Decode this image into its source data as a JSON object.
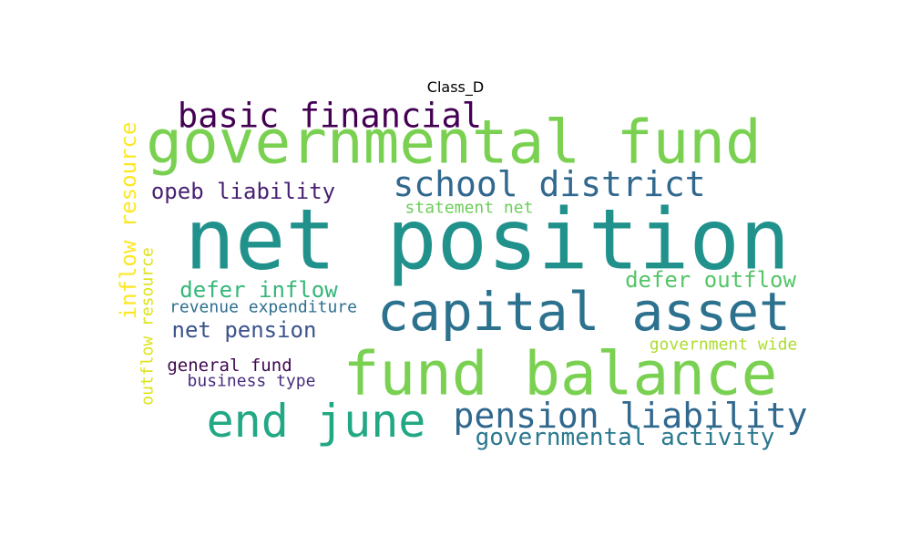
{
  "chart_data": {
    "type": "wordcloud",
    "title": "Class_D",
    "words": [
      {
        "text": "net position",
        "weight": 100,
        "color": "#21918c"
      },
      {
        "text": "governmental fund",
        "weight": 73,
        "color": "#7ad151"
      },
      {
        "text": "fund balance",
        "weight": 73,
        "color": "#7ad151"
      },
      {
        "text": "capital asset",
        "weight": 64,
        "color": "#2c728e"
      },
      {
        "text": "end june",
        "weight": 55,
        "color": "#22a884"
      },
      {
        "text": "pension liability",
        "weight": 42,
        "color": "#31688e"
      },
      {
        "text": "school district",
        "weight": 42,
        "color": "#31688e"
      },
      {
        "text": "basic financial",
        "weight": 41,
        "color": "#440154"
      },
      {
        "text": "governmental activity",
        "weight": 29,
        "color": "#2a788e"
      },
      {
        "text": "inflow resource",
        "weight": 27,
        "color": "#fde725"
      },
      {
        "text": "defer inflow",
        "weight": 27,
        "color": "#35b779"
      },
      {
        "text": "defer outflow",
        "weight": 27,
        "color": "#54c568"
      },
      {
        "text": "opeb liability",
        "weight": 27,
        "color": "#482173"
      },
      {
        "text": "net pension",
        "weight": 27,
        "color": "#3b528b"
      },
      {
        "text": "outflow resource",
        "weight": 21,
        "color": "#dde318"
      },
      {
        "text": "statement net",
        "weight": 20,
        "color": "#6ccd5a"
      },
      {
        "text": "revenue expenditure",
        "weight": 20,
        "color": "#2e6f8e"
      },
      {
        "text": "general fund",
        "weight": 21,
        "color": "#3e0751"
      },
      {
        "text": "business type",
        "weight": 20,
        "color": "#472d7b"
      },
      {
        "text": "government wide",
        "weight": 20,
        "color": "#addc30"
      }
    ]
  }
}
